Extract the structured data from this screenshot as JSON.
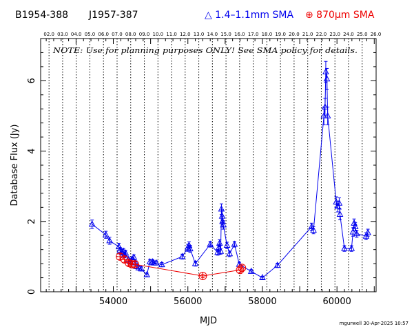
{
  "header": {
    "source": "B1954-388",
    "alias": "J1957-387",
    "legend_sma_band1": "△ 1.4–1.1mm SMA",
    "legend_sma_band2": "⊕ 870μm SMA"
  },
  "footer": "mgurwell 30-Apr-2025 10:57",
  "chart_data": {
    "type": "scatter",
    "title": "",
    "xlabel": "MJD",
    "ylabel": "Database Flux (Jy)",
    "xlim": [
      52050,
      61050
    ],
    "ylim": [
      0,
      7.2
    ],
    "x_ticks": [
      54000,
      56000,
      58000,
      60000
    ],
    "y_ticks": [
      0,
      2,
      4,
      6
    ],
    "grid": false,
    "annotation": "NOTE: Use for planning purposes ONLY! See SMA policy for details.",
    "top_axis_labels": [
      "02.0",
      "03.0",
      "04.0",
      "05.0",
      "06.0",
      "07.0",
      "08.0",
      "09.0",
      "10.0",
      "11.0",
      "12.0",
      "13.0",
      "14.0",
      "15.0",
      "16.0",
      "17.0",
      "18.0",
      "19.0",
      "20.0",
      "21.0",
      "22.0",
      "23.0",
      "24.0",
      "25.0",
      "26.0"
    ],
    "top_axis_mjd": [
      52275,
      52640,
      53005,
      53371,
      53736,
      54101,
      54466,
      54832,
      55197,
      55562,
      55927,
      56293,
      56658,
      57023,
      57388,
      57754,
      58119,
      58484,
      58849,
      59215,
      59580,
      59945,
      60310,
      60676,
      61041
    ],
    "year_boundaries_mjd": [
      52275,
      52640,
      53005,
      53371,
      53736,
      54101,
      54466,
      54832,
      55197,
      55562,
      55927,
      56293,
      56658,
      57023,
      57388,
      57754,
      58119,
      58484,
      58849,
      59215,
      59580,
      59945,
      60310,
      60676
    ],
    "series": [
      {
        "name": "1.4–1.1mm SMA",
        "color": "#0000ee",
        "marker": "triangle",
        "x": [
          53430,
          53800,
          53900,
          54150,
          54180,
          54230,
          54270,
          54300,
          54330,
          54400,
          54450,
          54500,
          54550,
          54600,
          54620,
          54680,
          54750,
          54900,
          54980,
          55050,
          55080,
          55150,
          55300,
          55850,
          56000,
          56030,
          56060,
          56200,
          56600,
          56800,
          56830,
          56850,
          56880,
          56900,
          56920,
          56930,
          56950,
          57050,
          57120,
          57250,
          57380,
          57700,
          58000,
          58400,
          59320,
          59370,
          59650,
          59680,
          59700,
          59730,
          59750,
          59980,
          60020,
          60060,
          60080,
          60200,
          60390,
          60430,
          60460,
          60490,
          60530,
          60780,
          60830
        ],
        "y": [
          1.92,
          1.62,
          1.45,
          1.28,
          1.18,
          1.12,
          1.15,
          1.05,
          1.1,
          0.92,
          0.86,
          0.92,
          0.98,
          0.82,
          0.72,
          0.68,
          0.65,
          0.48,
          0.85,
          0.85,
          0.82,
          0.82,
          0.77,
          1.0,
          1.25,
          1.32,
          1.22,
          0.8,
          1.35,
          1.12,
          1.25,
          1.38,
          1.15,
          2.35,
          2.15,
          2.0,
          1.9,
          1.32,
          1.08,
          1.35,
          0.78,
          0.58,
          0.4,
          0.75,
          1.85,
          1.75,
          5.0,
          5.25,
          6.25,
          6.05,
          5.0,
          2.55,
          2.42,
          2.52,
          2.2,
          1.23,
          1.23,
          1.7,
          1.95,
          1.85,
          1.65,
          1.58,
          1.68
        ],
        "err": [
          0.12,
          0.1,
          0.1,
          0.1,
          0.08,
          0.08,
          0.08,
          0.08,
          0.08,
          0.07,
          0.07,
          0.07,
          0.07,
          0.06,
          0.06,
          0.06,
          0.06,
          0.05,
          0.07,
          0.07,
          0.06,
          0.06,
          0.06,
          0.07,
          0.1,
          0.1,
          0.1,
          0.07,
          0.08,
          0.08,
          0.1,
          0.1,
          0.08,
          0.15,
          0.18,
          0.15,
          0.12,
          0.09,
          0.08,
          0.08,
          0.06,
          0.05,
          0.04,
          0.06,
          0.1,
          0.1,
          0.25,
          0.25,
          0.3,
          0.3,
          0.25,
          0.15,
          0.15,
          0.15,
          0.15,
          0.08,
          0.08,
          0.12,
          0.12,
          0.12,
          0.1,
          0.1,
          0.1
        ]
      },
      {
        "name": "870μm SMA",
        "color": "#ee0000",
        "marker": "circle-plus",
        "x": [
          54180,
          54300,
          54420,
          54500,
          54580,
          56400,
          57400,
          57450
        ],
        "y": [
          1.0,
          0.92,
          0.82,
          0.78,
          0.78,
          0.45,
          0.62,
          0.68
        ],
        "err": [
          0.08,
          0.08,
          0.07,
          0.07,
          0.07,
          0.05,
          0.07,
          0.07
        ]
      }
    ]
  }
}
